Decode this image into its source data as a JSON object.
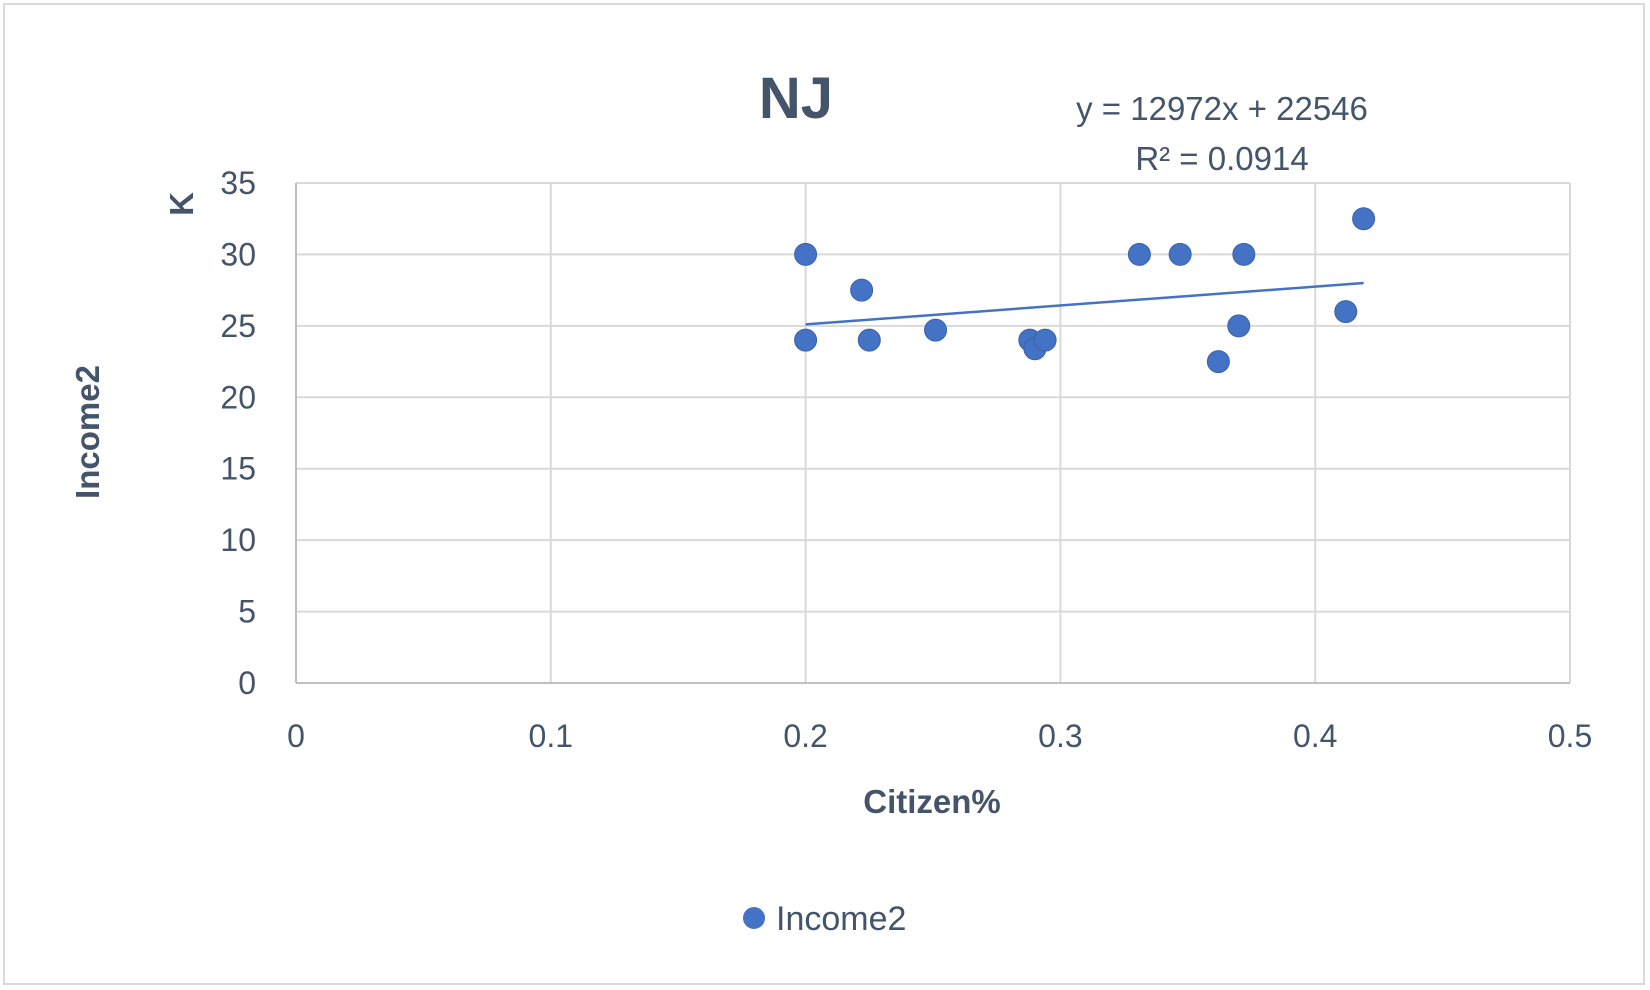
{
  "chart_data": {
    "type": "scatter",
    "title": "NJ",
    "xlabel": "Citizen%",
    "ylabel": "Income2",
    "y_unit": "K",
    "xlim": [
      0,
      0.5
    ],
    "ylim": [
      0,
      35
    ],
    "x_ticks": [
      "0",
      "0.1",
      "0.2",
      "0.3",
      "0.4",
      "0.5"
    ],
    "y_ticks": [
      "0",
      "5",
      "10",
      "15",
      "20",
      "25",
      "30",
      "35"
    ],
    "grid": true,
    "legend_position": "bottom",
    "series": [
      {
        "name": "Income2",
        "color": "#4472c4",
        "points": [
          {
            "x": 0.2,
            "y": 30.0
          },
          {
            "x": 0.2,
            "y": 24.0
          },
          {
            "x": 0.222,
            "y": 27.5
          },
          {
            "x": 0.225,
            "y": 24.0
          },
          {
            "x": 0.251,
            "y": 24.7
          },
          {
            "x": 0.288,
            "y": 24.0
          },
          {
            "x": 0.29,
            "y": 23.4
          },
          {
            "x": 0.294,
            "y": 24.0
          },
          {
            "x": 0.331,
            "y": 30.0
          },
          {
            "x": 0.347,
            "y": 30.0
          },
          {
            "x": 0.362,
            "y": 22.5
          },
          {
            "x": 0.37,
            "y": 25.0
          },
          {
            "x": 0.372,
            "y": 30.0
          },
          {
            "x": 0.412,
            "y": 26.0
          },
          {
            "x": 0.419,
            "y": 32.5
          }
        ]
      }
    ],
    "trendline": {
      "type": "linear",
      "equation": "y = 12972x + 22546",
      "r_squared": "R² = 0.0914",
      "x_range": [
        0.2,
        0.419
      ],
      "y_values": [
        25.1,
        28.0
      ]
    }
  }
}
